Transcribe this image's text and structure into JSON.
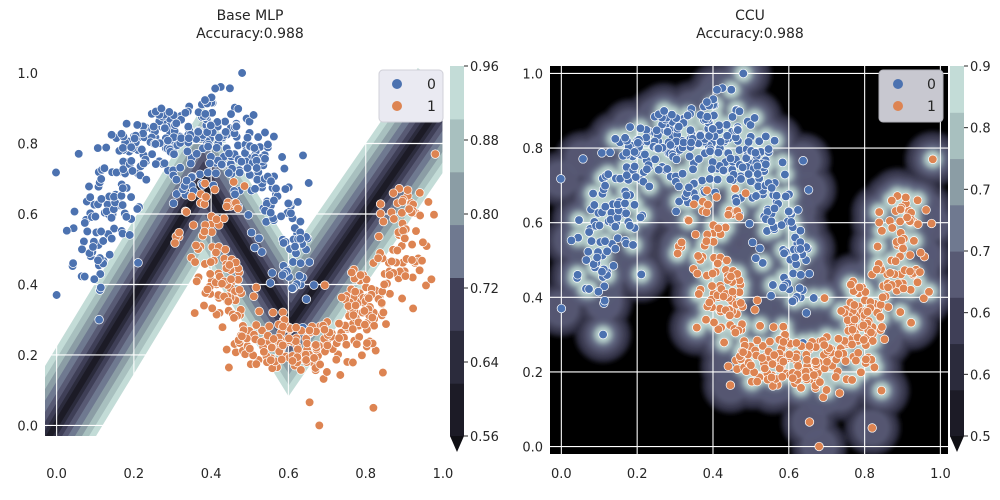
{
  "chart_data": [
    {
      "type": "scatter",
      "title": "Base MLP",
      "subtitle": "Accuracy:0.988",
      "xlabel": "",
      "ylabel": "",
      "xlim": [
        -0.03,
        1.0
      ],
      "ylim": [
        -0.03,
        1.02
      ],
      "x_ticks": [
        "0.0",
        "0.2",
        "0.4",
        "0.6",
        "0.8",
        "1.0"
      ],
      "y_ticks": [
        "0.0",
        "0.2",
        "0.4",
        "0.6",
        "0.8",
        "1.0"
      ],
      "grid": true,
      "background": "contourf",
      "colorbar": {
        "ticks": [
          "0.56",
          "0.64",
          "0.72",
          "0.80",
          "0.88",
          "0.96"
        ],
        "min": 0.56,
        "max": 0.96,
        "extend": "min"
      },
      "legend": {
        "position": "top-right",
        "entries": [
          "0",
          "1"
        ]
      },
      "series": [
        {
          "name": "0",
          "color": "#4c72b0",
          "clusters": [
            {
              "cx": 0.1,
              "cy": 0.52,
              "sx": 0.04,
              "sy": 0.08,
              "n": 45
            },
            {
              "cx": 0.16,
              "cy": 0.68,
              "sx": 0.04,
              "sy": 0.08,
              "n": 55
            },
            {
              "cx": 0.25,
              "cy": 0.81,
              "sx": 0.05,
              "sy": 0.05,
              "n": 75
            },
            {
              "cx": 0.38,
              "cy": 0.84,
              "sx": 0.05,
              "sy": 0.05,
              "n": 85
            },
            {
              "cx": 0.5,
              "cy": 0.76,
              "sx": 0.04,
              "sy": 0.06,
              "n": 60
            },
            {
              "cx": 0.57,
              "cy": 0.63,
              "sx": 0.035,
              "sy": 0.07,
              "n": 45
            },
            {
              "cx": 0.61,
              "cy": 0.45,
              "sx": 0.03,
              "sy": 0.06,
              "n": 35
            },
            {
              "cx": 0.35,
              "cy": 0.69,
              "sx": 0.04,
              "sy": 0.03,
              "n": 20
            }
          ],
          "outliers": [
            [
              0.48,
              1.0
            ],
            [
              0.0,
              0.37
            ],
            [
              0.11,
              0.3
            ]
          ]
        },
        {
          "name": "1",
          "color": "#dd8452",
          "clusters": [
            {
              "cx": 0.4,
              "cy": 0.56,
              "sx": 0.04,
              "sy": 0.06,
              "n": 45
            },
            {
              "cx": 0.44,
              "cy": 0.38,
              "sx": 0.04,
              "sy": 0.06,
              "n": 55
            },
            {
              "cx": 0.55,
              "cy": 0.24,
              "sx": 0.05,
              "sy": 0.04,
              "n": 80
            },
            {
              "cx": 0.68,
              "cy": 0.22,
              "sx": 0.05,
              "sy": 0.04,
              "n": 80
            },
            {
              "cx": 0.79,
              "cy": 0.33,
              "sx": 0.04,
              "sy": 0.06,
              "n": 60
            },
            {
              "cx": 0.88,
              "cy": 0.46,
              "sx": 0.04,
              "sy": 0.07,
              "n": 55
            },
            {
              "cx": 0.91,
              "cy": 0.6,
              "sx": 0.03,
              "sy": 0.05,
              "n": 25
            }
          ],
          "outliers": [
            [
              0.68,
              0.0
            ],
            [
              0.98,
              0.77
            ],
            [
              0.82,
              0.05
            ]
          ]
        }
      ]
    },
    {
      "type": "scatter",
      "title": "CCU",
      "subtitle": "Accuracy:0.988",
      "xlabel": "",
      "ylabel": "",
      "xlim": [
        -0.03,
        1.02
      ],
      "ylim": [
        -0.02,
        1.02
      ],
      "x_ticks": [
        "0.0",
        "0.2",
        "0.4",
        "0.6",
        "0.8",
        "1.0"
      ],
      "y_ticks": [
        "0.0",
        "0.2",
        "0.4",
        "0.6",
        "0.8",
        "1.0"
      ],
      "grid": true,
      "background": "contourf",
      "colorbar": {
        "ticks": [
          "0.5",
          "0.6",
          "0.6",
          "0.7",
          "0.7",
          "0.8",
          "0.9"
        ],
        "min": 0.5,
        "max": 0.9,
        "extend": "min"
      },
      "legend": {
        "position": "top-right",
        "entries": [
          "0",
          "1"
        ]
      },
      "series": [
        {
          "name": "0",
          "color": "#4c72b0",
          "ref": 0
        },
        {
          "name": "1",
          "color": "#dd8452",
          "ref": 1
        }
      ]
    }
  ],
  "colors": {
    "bg_dark": "#000000",
    "contour_levels": [
      "#1c1b26",
      "#2b2b3c",
      "#3f3f57",
      "#585a74",
      "#6f7990",
      "#8b9da5",
      "#a8c0bf",
      "#c3dcd7"
    ],
    "grid": "#ffffff",
    "legend_bg": "#eaeaf2"
  }
}
